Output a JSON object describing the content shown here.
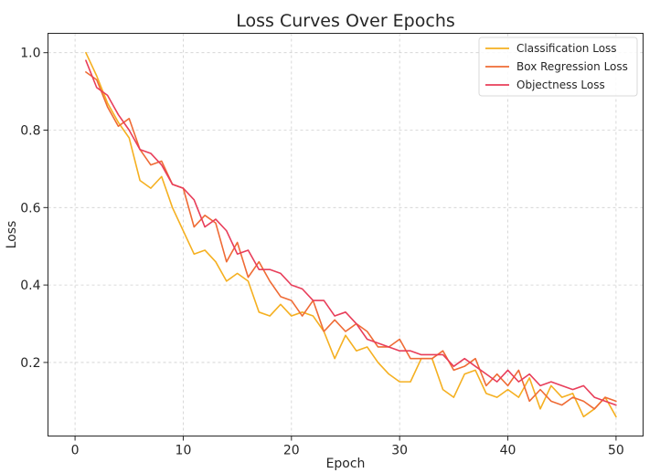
{
  "chart_data": {
    "type": "line",
    "title": "Loss Curves Over Epochs",
    "xlabel": "Epoch",
    "ylabel": "Loss",
    "xlim": [
      -2.5,
      52.5
    ],
    "ylim": [
      0.01,
      1.05
    ],
    "xticks": [
      0,
      10,
      20,
      30,
      40,
      50
    ],
    "xtick_labels": [
      "0",
      "10",
      "20",
      "30",
      "40",
      "50"
    ],
    "yticks": [
      0.2,
      0.4,
      0.6,
      0.8,
      1.0
    ],
    "ytick_labels": [
      "0.2",
      "0.4",
      "0.6",
      "0.8",
      "1.0"
    ],
    "grid": true,
    "legend_position": "top-right",
    "x": [
      1,
      2,
      3,
      4,
      5,
      6,
      7,
      8,
      9,
      10,
      11,
      12,
      13,
      14,
      15,
      16,
      17,
      18,
      19,
      20,
      21,
      22,
      23,
      24,
      25,
      26,
      27,
      28,
      29,
      30,
      31,
      32,
      33,
      34,
      35,
      36,
      37,
      38,
      39,
      40,
      41,
      42,
      43,
      44,
      45,
      46,
      47,
      48,
      49,
      50
    ],
    "series": [
      {
        "name": "Classification Loss",
        "color": "#f5b021",
        "values": [
          1.0,
          0.94,
          0.87,
          0.82,
          0.78,
          0.67,
          0.65,
          0.68,
          0.6,
          0.54,
          0.48,
          0.49,
          0.46,
          0.41,
          0.43,
          0.41,
          0.33,
          0.32,
          0.35,
          0.32,
          0.33,
          0.32,
          0.28,
          0.21,
          0.27,
          0.23,
          0.24,
          0.2,
          0.17,
          0.15,
          0.15,
          0.21,
          0.21,
          0.13,
          0.11,
          0.17,
          0.18,
          0.12,
          0.11,
          0.13,
          0.11,
          0.16,
          0.08,
          0.14,
          0.11,
          0.12,
          0.06,
          0.08,
          0.11,
          0.06
        ]
      },
      {
        "name": "Box Regression Loss",
        "color": "#ef6b35",
        "values": [
          0.95,
          0.93,
          0.86,
          0.81,
          0.83,
          0.75,
          0.71,
          0.72,
          0.66,
          0.65,
          0.55,
          0.58,
          0.56,
          0.46,
          0.51,
          0.42,
          0.46,
          0.41,
          0.37,
          0.36,
          0.32,
          0.36,
          0.28,
          0.31,
          0.28,
          0.3,
          0.28,
          0.24,
          0.24,
          0.26,
          0.21,
          0.21,
          0.21,
          0.23,
          0.18,
          0.19,
          0.21,
          0.14,
          0.17,
          0.14,
          0.18,
          0.1,
          0.13,
          0.1,
          0.09,
          0.11,
          0.1,
          0.08,
          0.11,
          0.1
        ]
      },
      {
        "name": "Objectness Loss",
        "color": "#e83e5a",
        "values": [
          0.98,
          0.91,
          0.89,
          0.84,
          0.8,
          0.75,
          0.74,
          0.71,
          0.66,
          0.65,
          0.62,
          0.55,
          0.57,
          0.54,
          0.48,
          0.49,
          0.44,
          0.44,
          0.43,
          0.4,
          0.39,
          0.36,
          0.36,
          0.32,
          0.33,
          0.3,
          0.26,
          0.25,
          0.24,
          0.23,
          0.23,
          0.22,
          0.22,
          0.22,
          0.19,
          0.21,
          0.19,
          0.17,
          0.15,
          0.18,
          0.15,
          0.17,
          0.14,
          0.15,
          0.14,
          0.13,
          0.14,
          0.11,
          0.1,
          0.09
        ]
      }
    ]
  }
}
